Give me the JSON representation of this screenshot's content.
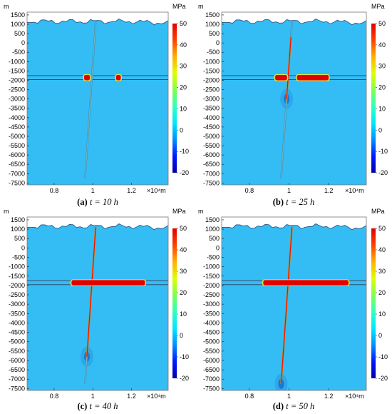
{
  "colors": {
    "background_stress": "#34BDF4",
    "surface_line": "#2A5A88",
    "layer_line": "#2E3D55",
    "high_stress": "#F21D12"
  },
  "colorbar": {
    "unit": "MPa",
    "range": [
      -20,
      50
    ],
    "ticks": [
      50,
      40,
      30,
      20,
      10,
      0,
      -10,
      -20
    ],
    "ticks_text": [
      "50",
      "40",
      "30",
      "20",
      "10",
      "0",
      "-10",
      "-20"
    ],
    "colormap": [
      "#0000A8",
      "#0018FF",
      "#0090FF",
      "#00E8FF",
      "#30FFC0",
      "#80FF50",
      "#E0FF00",
      "#FFB000",
      "#FF4000",
      "#E00000"
    ]
  },
  "chart_data": [
    {
      "type": "heatmap",
      "caption": {
        "label": "(a)",
        "text": "t = 10 h"
      },
      "time_h": 10,
      "ylabel": "m",
      "ylim": [
        -7600,
        1650
      ],
      "yticks": [
        1500,
        1000,
        500,
        0,
        -500,
        -1000,
        -1500,
        -2000,
        -2500,
        -3000,
        -3500,
        -4000,
        -4500,
        -5000,
        -5500,
        -6000,
        -6500,
        -7000,
        -7500
      ],
      "yticks_text": [
        "1500",
        "1000",
        "500",
        "0",
        "-500",
        "-1000",
        "-1500",
        "-2000",
        "-2500",
        "-3000",
        "-3500",
        "-4000",
        "-4500",
        "-5000",
        "-5500",
        "-6000",
        "-6500",
        "-7000",
        "-7500"
      ],
      "xlim": [
        0.66,
        1.39
      ],
      "xticks": [
        0.8,
        1,
        1.2
      ],
      "xticks_text": [
        "0.8",
        "1",
        "1.2"
      ],
      "x_unit": "×10⁴m",
      "layer_top_m": -1750,
      "layer_bottom_m": -1960,
      "well": {
        "top": [
          1.015,
          1150
        ],
        "bottom": [
          0.96,
          -7250
        ],
        "stress_mpa": 3
      },
      "fracture_zones": [
        {
          "x_min": 0.955,
          "x_max": 0.985,
          "stress_mpa": 50
        },
        {
          "x_min": 1.12,
          "x_max": 1.145,
          "stress_mpa": 50
        }
      ],
      "stress_fronts": []
    },
    {
      "type": "heatmap",
      "caption": {
        "label": "(b)",
        "text": "t = 25 h"
      },
      "time_h": 25,
      "ylabel": "m",
      "ylim": [
        -7600,
        1650
      ],
      "yticks": [
        1500,
        1000,
        500,
        0,
        -500,
        -1000,
        -1500,
        -2000,
        -2500,
        -3000,
        -3500,
        -4000,
        -4500,
        -5000,
        -5500,
        -6000,
        -6500,
        -7000,
        -7500
      ],
      "yticks_text": [
        "1500",
        "1000",
        "500",
        "0",
        "-500",
        "-1000",
        "-1500",
        "-2000",
        "-2500",
        "-3000",
        "-3500",
        "-4000",
        "-4500",
        "-5000",
        "-5500",
        "-6000",
        "-6500",
        "-7000",
        "-7500"
      ],
      "xlim": [
        0.66,
        1.39
      ],
      "xticks": [
        0.8,
        1,
        1.2
      ],
      "xticks_text": [
        "0.8",
        "1",
        "1.2"
      ],
      "x_unit": "×10⁴m",
      "layer_top_m": -1750,
      "layer_bottom_m": -1960,
      "well": {
        "top": [
          1.015,
          1150
        ],
        "bottom": [
          0.96,
          -7250
        ],
        "stress_mpa": 3
      },
      "fracture_zones": [
        {
          "x_min": 0.93,
          "x_max": 0.99,
          "stress_mpa": 50
        },
        {
          "x_min": 1.04,
          "x_max": 1.2,
          "stress_mpa": 50
        }
      ],
      "stress_fronts": [
        {
          "y_top": 300,
          "y_bottom": -3000,
          "stress_mpa": 48
        }
      ]
    },
    {
      "type": "heatmap",
      "caption": {
        "label": "(c)",
        "text": "t = 40 h"
      },
      "time_h": 40,
      "ylabel": "m",
      "ylim": [
        -7600,
        1650
      ],
      "yticks": [
        1500,
        1000,
        500,
        0,
        -500,
        -1000,
        -1500,
        -2000,
        -2500,
        -3000,
        -3500,
        -4000,
        -4500,
        -5000,
        -5500,
        -6000,
        -6500,
        -7000,
        -7500
      ],
      "yticks_text": [
        "1500",
        "1000",
        "500",
        "0",
        "-500",
        "-1000",
        "-1500",
        "-2000",
        "-2500",
        "-3000",
        "-3500",
        "-4000",
        "-4500",
        "-5000",
        "-5500",
        "-6000",
        "-6500",
        "-7000",
        "-7500"
      ],
      "xlim": [
        0.66,
        1.39
      ],
      "xticks": [
        0.8,
        1,
        1.2
      ],
      "xticks_text": [
        "0.8",
        "1",
        "1.2"
      ],
      "x_unit": "×10⁴m",
      "layer_top_m": -1750,
      "layer_bottom_m": -1960,
      "well": {
        "top": [
          1.015,
          1150
        ],
        "bottom": [
          0.96,
          -7250
        ],
        "stress_mpa": 3
      },
      "fracture_zones": [
        {
          "x_min": 0.89,
          "x_max": 1.27,
          "stress_mpa": 50
        }
      ],
      "stress_fronts": [
        {
          "y_top": 1100,
          "y_bottom": -5800,
          "stress_mpa": 48
        }
      ]
    },
    {
      "type": "heatmap",
      "caption": {
        "label": "(d)",
        "text": "t = 50 h"
      },
      "time_h": 50,
      "ylabel": "m",
      "ylim": [
        -7600,
        1650
      ],
      "yticks": [
        1500,
        1000,
        500,
        0,
        -500,
        -1000,
        -1500,
        -2000,
        -2500,
        -3000,
        -3500,
        -4000,
        -4500,
        -5000,
        -5500,
        -6000,
        -6500,
        -7000,
        -7500
      ],
      "yticks_text": [
        "1500",
        "1000",
        "500",
        "0",
        "-500",
        "-1000",
        "-1500",
        "-2000",
        "-2500",
        "-3000",
        "-3500",
        "-4000",
        "-4500",
        "-5000",
        "-5500",
        "-6000",
        "-6500",
        "-7000",
        "-7500"
      ],
      "xlim": [
        0.66,
        1.39
      ],
      "xticks": [
        0.8,
        1,
        1.2
      ],
      "xticks_text": [
        "0.8",
        "1",
        "1.2"
      ],
      "x_unit": "×10⁴m",
      "layer_top_m": -1750,
      "layer_bottom_m": -1960,
      "well": {
        "top": [
          1.015,
          1150
        ],
        "bottom": [
          0.96,
          -7250
        ],
        "stress_mpa": 3
      },
      "fracture_zones": [
        {
          "x_min": 0.87,
          "x_max": 1.3,
          "stress_mpa": 50
        }
      ],
      "stress_fronts": [
        {
          "y_top": 1100,
          "y_bottom": -7250,
          "stress_mpa": 48
        }
      ]
    }
  ]
}
